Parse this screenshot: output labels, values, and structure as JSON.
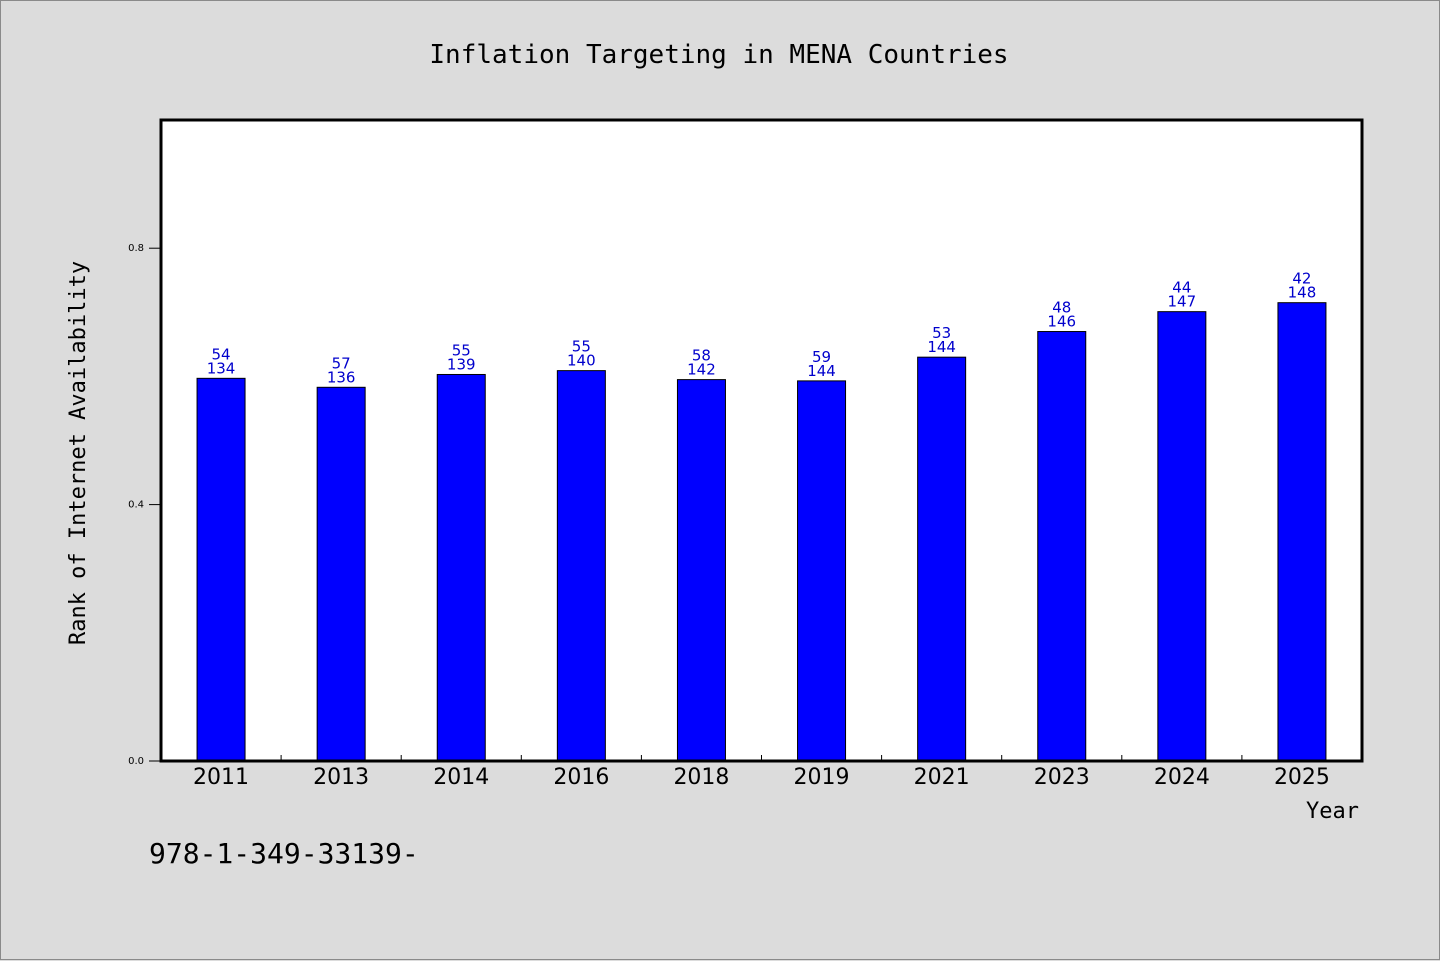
{
  "chart_data": {
    "type": "bar",
    "title": "Inflation Targeting in MENA Countries",
    "xlabel": "Year",
    "ylabel": "Rank of Internet Availability",
    "ylim": [
      0.0,
      1.0
    ],
    "yticks": [
      "0.0",
      "0.4",
      "0.8"
    ],
    "ytick_values": [
      0.0,
      0.4,
      0.8
    ],
    "grid": false,
    "categories": [
      "2011",
      "2013",
      "2014",
      "2016",
      "2018",
      "2019",
      "2021",
      "2023",
      "2024",
      "2025"
    ],
    "values": [
      0.597,
      0.583,
      0.603,
      0.609,
      0.595,
      0.593,
      0.63,
      0.67,
      0.701,
      0.715
    ],
    "labels_top": [
      "54",
      "57",
      "55",
      "55",
      "58",
      "59",
      "53",
      "48",
      "44",
      "42"
    ],
    "labels_bottom": [
      "134",
      "136",
      "139",
      "140",
      "142",
      "144",
      "144",
      "146",
      "147",
      "148"
    ],
    "bar_color": "#0000ff",
    "label_color": "#0000cc"
  },
  "footnote": "978-1-349-33139-"
}
